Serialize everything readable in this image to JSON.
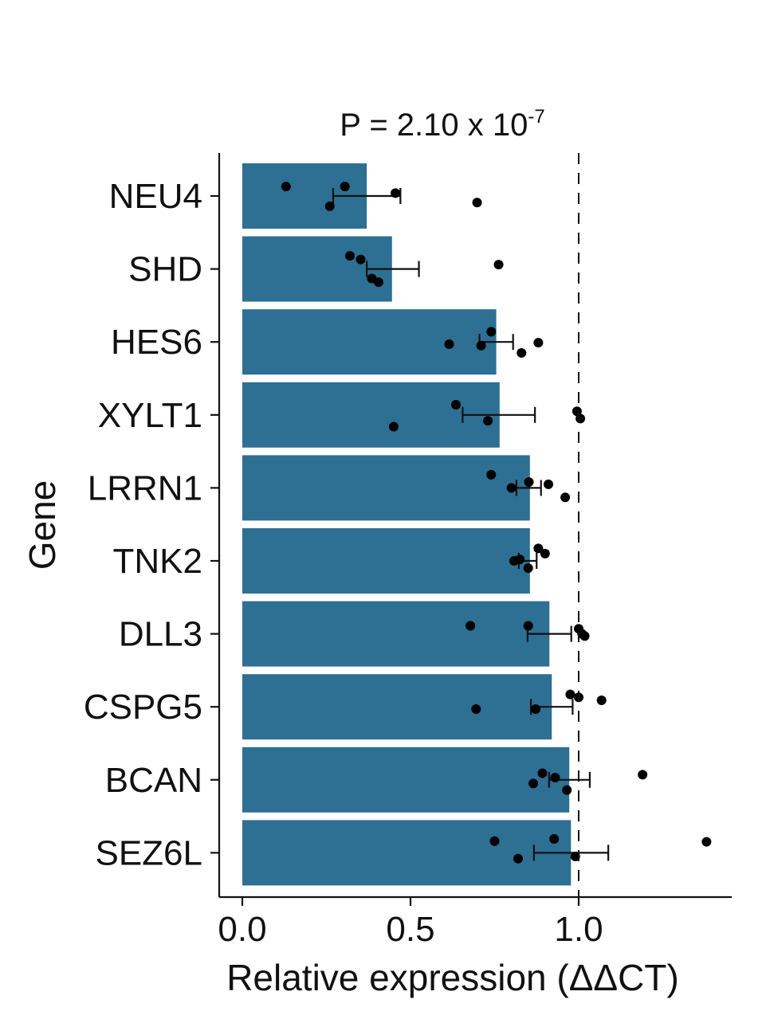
{
  "chart_data": {
    "type": "bar",
    "orientation": "horizontal",
    "title_parts": [
      "P = 2.10 x 10",
      "-7"
    ],
    "xlabel": "Relative expression  (ΔΔCT)",
    "ylabel": "Gene",
    "xlim": [
      -0.07,
      1.45
    ],
    "xticks": [
      0.0,
      0.5,
      1.0
    ],
    "xtick_labels": [
      "0.0",
      "0.5",
      "1.0"
    ],
    "reference_line": 1.0,
    "bar_color": "#2e6f94",
    "point_color": "#000000",
    "categories": [
      "NEU4",
      "SHD",
      "HES6",
      "XYLT1",
      "LRRN1",
      "TNK2",
      "DLL3",
      "CSPG5",
      "BCAN",
      "SEZ6L"
    ],
    "values": [
      0.37,
      0.445,
      0.755,
      0.765,
      0.855,
      0.855,
      0.913,
      0.92,
      0.972,
      0.977
    ],
    "error_low": [
      0.27,
      0.37,
      0.705,
      0.655,
      0.815,
      0.822,
      0.848,
      0.858,
      0.912,
      0.867
    ],
    "error_high": [
      0.47,
      0.525,
      0.805,
      0.87,
      0.888,
      0.875,
      0.978,
      0.982,
      1.033,
      1.088
    ],
    "points": [
      [
        [
          0.13,
          -0.13
        ],
        [
          0.305,
          -0.13
        ],
        [
          0.26,
          0.14
        ],
        [
          0.455,
          -0.04
        ],
        [
          0.698,
          0.09
        ]
      ],
      [
        [
          0.32,
          -0.18
        ],
        [
          0.352,
          -0.13
        ],
        [
          0.385,
          0.13
        ],
        [
          0.405,
          0.18
        ],
        [
          0.762,
          -0.06
        ]
      ],
      [
        [
          0.615,
          0.03
        ],
        [
          0.71,
          0.05
        ],
        [
          0.74,
          -0.14
        ],
        [
          0.83,
          0.15
        ],
        [
          0.88,
          0.01
        ]
      ],
      [
        [
          0.45,
          0.16
        ],
        [
          0.635,
          -0.14
        ],
        [
          0.73,
          0.08
        ],
        [
          0.995,
          -0.05
        ],
        [
          1.005,
          0.05
        ]
      ],
      [
        [
          0.74,
          -0.18
        ],
        [
          0.8,
          0.0
        ],
        [
          0.852,
          -0.08
        ],
        [
          0.91,
          -0.05
        ],
        [
          0.96,
          0.13
        ]
      ],
      [
        [
          0.808,
          0.0
        ],
        [
          0.825,
          -0.02
        ],
        [
          0.88,
          -0.17
        ],
        [
          0.9,
          -0.1
        ],
        [
          0.85,
          0.1
        ]
      ],
      [
        [
          0.678,
          -0.11
        ],
        [
          0.85,
          -0.11
        ],
        [
          1.0,
          -0.07
        ],
        [
          1.01,
          0.0
        ],
        [
          1.018,
          0.03
        ]
      ],
      [
        [
          0.695,
          0.03
        ],
        [
          0.872,
          0.03
        ],
        [
          0.975,
          -0.17
        ],
        [
          1.0,
          -0.13
        ],
        [
          1.068,
          -0.09
        ]
      ],
      [
        [
          0.865,
          0.05
        ],
        [
          0.892,
          -0.09
        ],
        [
          0.93,
          -0.03
        ],
        [
          0.965,
          0.14
        ],
        [
          1.19,
          -0.07
        ]
      ],
      [
        [
          0.75,
          -0.16
        ],
        [
          0.82,
          0.08
        ],
        [
          0.927,
          -0.19
        ],
        [
          0.99,
          0.05
        ],
        [
          1.38,
          -0.15
        ]
      ]
    ]
  }
}
